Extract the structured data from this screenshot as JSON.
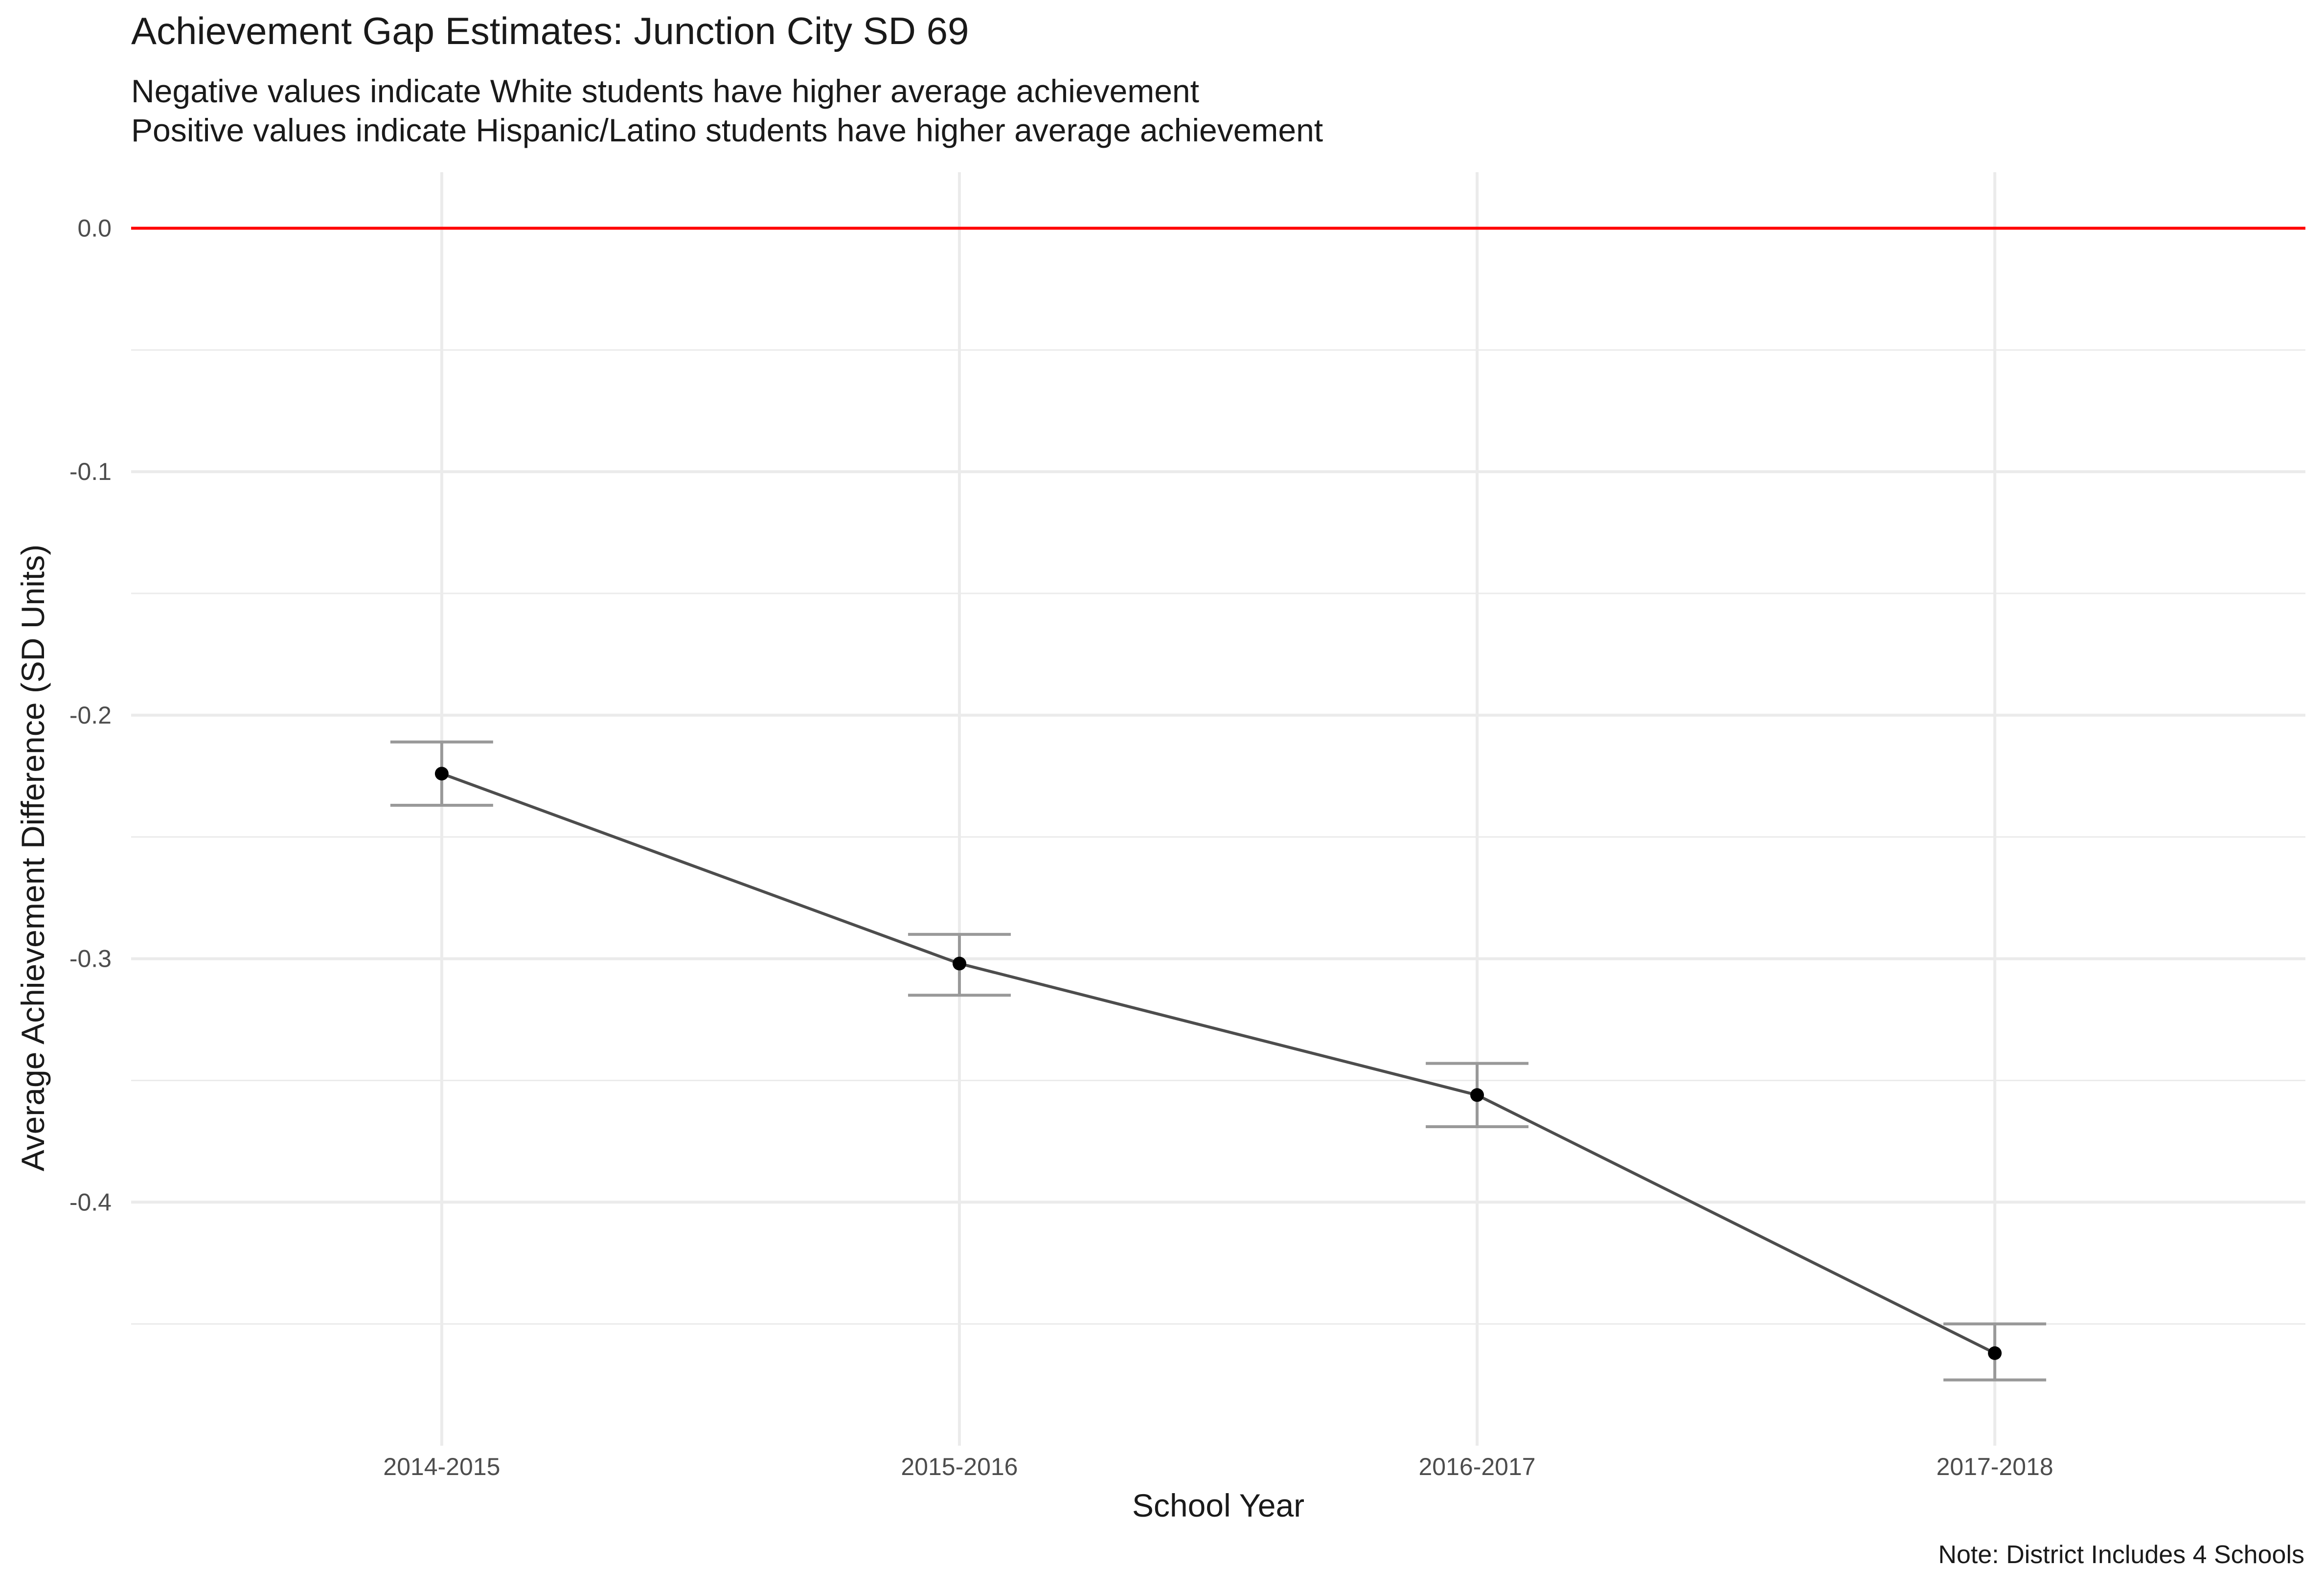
{
  "title": "Achievement Gap Estimates: Junction City SD 69",
  "subtitle": [
    "Negative values indicate White students have higher average achievement",
    "Positive values indicate Hispanic/Latino students have higher average achievement"
  ],
  "caption": "Note: District Includes 4 Schools",
  "chart_data": {
    "type": "line",
    "xlabel": "School Year",
    "ylabel": "Average Achievement Difference (SD Units)",
    "categories": [
      "2014-2015",
      "2015-2016",
      "2016-2017",
      "2017-2018"
    ],
    "series": [
      {
        "values": [
          -0.224,
          -0.302,
          -0.356,
          -0.462
        ],
        "ci_lower": [
          -0.237,
          -0.315,
          -0.369,
          -0.473
        ],
        "ci_upper": [
          -0.211,
          -0.29,
          -0.343,
          -0.45
        ]
      }
    ],
    "reference_line": {
      "y": 0.0,
      "color": "#ff0000"
    },
    "ylim": [
      -0.5,
      0.023
    ],
    "yticks": [
      0.0,
      -0.1,
      -0.2,
      -0.3,
      -0.4
    ],
    "ytick_labels": [
      "0.0",
      "-0.1",
      "-0.2",
      "-0.3",
      "-0.4"
    ],
    "grid": true,
    "colors": {
      "line": "#4d4d4d",
      "point": "#000000",
      "errorbar": "#999999",
      "grid": "#ebebeb",
      "reference": "#ff0000"
    }
  }
}
